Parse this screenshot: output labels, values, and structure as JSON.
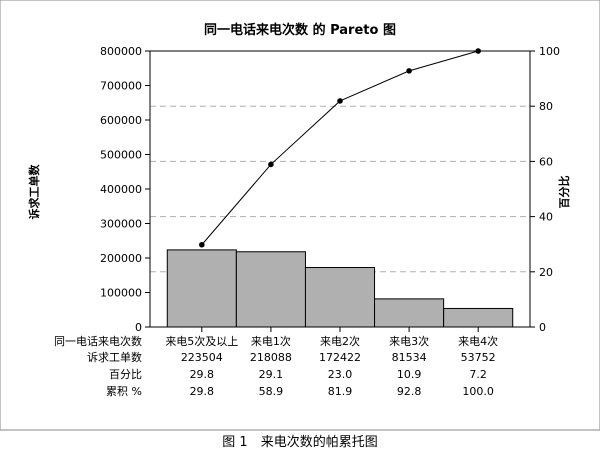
{
  "chart_data": {
    "type": "bar",
    "title": "同一电话来电次数 的 Pareto 图",
    "ylabel": "诉求工单数",
    "y2label": "百分比",
    "ylim": [
      0,
      800000
    ],
    "y2lim": [
      0,
      100
    ],
    "yticks": [
      "0",
      "100000",
      "200000",
      "300000",
      "400000",
      "500000",
      "600000",
      "700000",
      "800000"
    ],
    "y2ticks": [
      "0",
      "20",
      "40",
      "60",
      "80",
      "100"
    ],
    "categories": [
      "来电5次及以上",
      "来电1次",
      "来电2次",
      "来电3次",
      "来电4次"
    ],
    "series": [
      {
        "values": [
          223504,
          218088,
          172422,
          81534,
          53752
        ]
      },
      {
        "values": [
          29.8,
          58.9,
          81.9,
          92.8,
          100.0
        ]
      }
    ],
    "bar_color": "#b0b0b0",
    "grid_dash": true,
    "table": {
      "row_labels": [
        "同一电话来电次数",
        "诉求工单数",
        "百分比",
        "累积 %"
      ],
      "rows": [
        [
          "来电5次及以上",
          "来电1次",
          "来电2次",
          "来电3次",
          "来电4次"
        ],
        [
          "223504",
          "218088",
          "172422",
          "81534",
          "53752"
        ],
        [
          "29.8",
          "29.1",
          "23.0",
          "10.9",
          "7.2"
        ],
        [
          "29.8",
          "58.9",
          "81.9",
          "92.8",
          "100.0"
        ]
      ]
    }
  },
  "caption": "图 1　来电次数的帕累托图"
}
